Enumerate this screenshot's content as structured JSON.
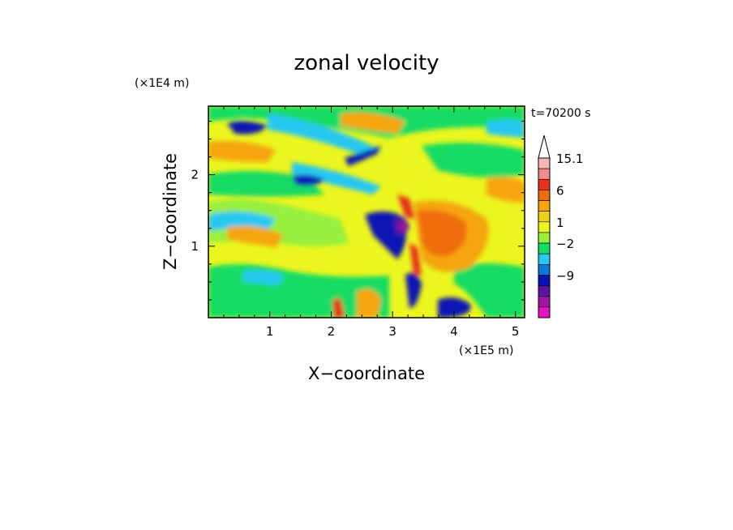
{
  "chart_data": {
    "type": "heatmap",
    "title": "zonal velocity",
    "xlabel": "X−coordinate",
    "ylabel": "Z−coordinate",
    "x_unit": "(×1E5 m)",
    "y_unit": "(×1E4 m)",
    "time_label": "t=70200 s",
    "xlim": [
      0,
      5.15
    ],
    "ylim": [
      0,
      2.96
    ],
    "x_ticks": [
      1,
      2,
      3,
      4,
      5
    ],
    "y_ticks": [
      1,
      2
    ],
    "colorbar": {
      "labels": [
        "15.1",
        "6",
        "1",
        "−2",
        "−9"
      ],
      "colors": [
        "#f7b6b6",
        "#f08c8c",
        "#e8321e",
        "#f06d0a",
        "#f5a50a",
        "#f0d214",
        "#ebf51e",
        "#96f03c",
        "#14dc64",
        "#28c8f0",
        "#0a78dc",
        "#0a14b4",
        "#5a14a0",
        "#a014a0",
        "#e614c8"
      ],
      "extend": "max"
    },
    "grid": false,
    "legend": "colorbar-right"
  }
}
